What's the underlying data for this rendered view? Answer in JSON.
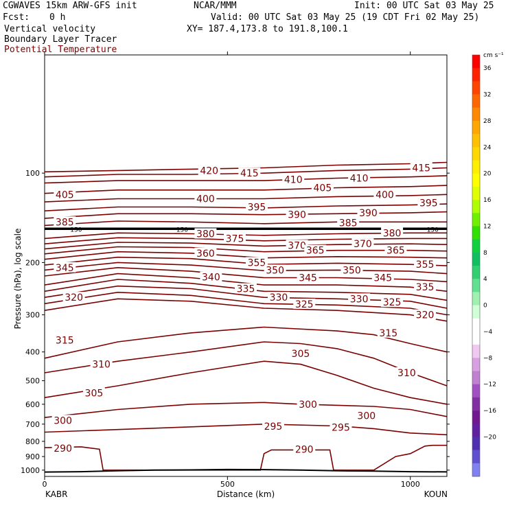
{
  "header": {
    "model": "CGWAVES 15km ARW-GFS init",
    "org": "NCAR/MMM",
    "init": "Init: 00 UTC Sat 03 May 25",
    "fcst_label": "Fcst:",
    "fcst_value": "0 h",
    "valid": "Valid: 00 UTC Sat 03 May 25 (19 CDT Fri 02 May 25)",
    "field1": "Vertical velocity",
    "xy": "XY= 187.4,173.8 to 191.8,100.1",
    "field2": "Boundary Layer Tracer",
    "field3": "Potential Temperature"
  },
  "colors": {
    "contour": "#7a0000",
    "field3_text": "#800000"
  },
  "chart_data": {
    "type": "line",
    "title": "",
    "xlabel": "Distance (km)",
    "ylabel": "Pressure (hPa), log scale",
    "xlim": [
      0,
      1100
    ],
    "ylim": [
      1050,
      40
    ],
    "y_scale": "log",
    "x_ticks": [
      0,
      500,
      1000
    ],
    "y_ticks": [
      100,
      200,
      300,
      400,
      500,
      600,
      700,
      800,
      900,
      1000
    ],
    "left_station": "KABR",
    "right_station": "KOUN",
    "tropopause_marker": "150",
    "contours": [
      {
        "theta": 290,
        "x": [
          0,
          100,
          150,
          160,
          170,
          180,
          580,
          590,
          600,
          620,
          780,
          790,
          800,
          820,
          900,
          960,
          1000,
          1040,
          1060,
          1100
        ],
        "p": [
          840,
          835,
          850,
          1000,
          1000,
          1000,
          1000,
          1000,
          880,
          855,
          855,
          1000,
          1000,
          1000,
          1000,
          900,
          880,
          830,
          825,
          825
        ]
      },
      {
        "theta": 295,
        "x": [
          0,
          200,
          400,
          600,
          800,
          900,
          1000,
          1100
        ],
        "p": [
          745,
          730,
          715,
          700,
          710,
          725,
          750,
          760
        ]
      },
      {
        "theta": 300,
        "x": [
          0,
          200,
          400,
          600,
          700,
          900,
          1000,
          1100
        ],
        "p": [
          665,
          625,
          600,
          592,
          600,
          610,
          625,
          660
        ]
      },
      {
        "theta": 305,
        "x": [
          0,
          200,
          400,
          600,
          700,
          800,
          900,
          1000,
          1100
        ],
        "p": [
          570,
          520,
          470,
          430,
          440,
          480,
          530,
          570,
          600
        ]
      },
      {
        "theta": 310,
        "x": [
          0,
          200,
          400,
          600,
          700,
          800,
          900,
          1000,
          1100
        ],
        "p": [
          470,
          430,
          400,
          370,
          375,
          390,
          420,
          470,
          520
        ]
      },
      {
        "theta": 315,
        "x": [
          0,
          200,
          400,
          600,
          800,
          900,
          1000,
          1100
        ],
        "p": [
          420,
          370,
          345,
          330,
          340,
          350,
          375,
          400
        ]
      },
      {
        "theta": 320,
        "x": [
          0,
          200,
          400,
          600,
          800,
          1000,
          1100
        ],
        "p": [
          290,
          265,
          270,
          285,
          290,
          300,
          315
        ]
      },
      {
        "theta": 325,
        "x": [
          0,
          200,
          400,
          600,
          800,
          1000,
          1100
        ],
        "p": [
          275,
          252,
          258,
          275,
          278,
          285,
          300
        ]
      },
      {
        "theta": 330,
        "x": [
          0,
          200,
          400,
          600,
          800,
          1000,
          1100
        ],
        "p": [
          262,
          240,
          245,
          262,
          265,
          270,
          285
        ]
      },
      {
        "theta": 335,
        "x": [
          0,
          200,
          400,
          600,
          800,
          1000,
          1100
        ],
        "p": [
          250,
          228,
          235,
          250,
          252,
          256,
          268
        ]
      },
      {
        "theta": 340,
        "x": [
          0,
          200,
          400,
          600,
          800,
          1000,
          1100
        ],
        "p": [
          238,
          218,
          225,
          238,
          238,
          242,
          250
        ]
      },
      {
        "theta": 345,
        "x": [
          0,
          200,
          400,
          600,
          800,
          1000,
          1100
        ],
        "p": [
          222,
          208,
          214,
          225,
          225,
          228,
          232
        ]
      },
      {
        "theta": 350,
        "x": [
          0,
          200,
          400,
          600,
          800,
          1000,
          1100
        ],
        "p": [
          212,
          200,
          204,
          213,
          212,
          214,
          218
        ]
      },
      {
        "theta": 355,
        "x": [
          0,
          200,
          400,
          600,
          800,
          1000,
          1100
        ],
        "p": [
          204,
          192,
          194,
          203,
          201,
          203,
          205
        ]
      },
      {
        "theta": 360,
        "x": [
          0,
          200,
          400,
          600,
          800,
          1000,
          1100
        ],
        "p": [
          195,
          184,
          186,
          193,
          191,
          192,
          193
        ]
      },
      {
        "theta": 365,
        "x": [
          0,
          200,
          400,
          600,
          800,
          1000,
          1100
        ],
        "p": [
          187,
          177,
          178,
          184,
          182,
          182,
          183
        ]
      },
      {
        "theta": 370,
        "x": [
          0,
          200,
          400,
          600,
          800,
          1000,
          1100
        ],
        "p": [
          180,
          171,
          172,
          176,
          174,
          173,
          174
        ]
      },
      {
        "theta": 375,
        "x": [
          0,
          200,
          400,
          600,
          800,
          1000,
          1100
        ],
        "p": [
          173,
          165,
          166,
          169,
          167,
          166,
          166
        ]
      },
      {
        "theta": 380,
        "x": [
          0,
          200,
          400,
          600,
          800,
          1000,
          1100
        ],
        "p": [
          166,
          159,
          160,
          162,
          160,
          159,
          159
        ]
      },
      {
        "theta": 385,
        "x": [
          0,
          200,
          400,
          600,
          800,
          1000,
          1100
        ],
        "p": [
          150,
          145,
          146,
          148,
          146,
          146,
          146
        ]
      },
      {
        "theta": 390,
        "x": [
          0,
          200,
          400,
          600,
          800,
          1000,
          1100
        ],
        "p": [
          142,
          137,
          137,
          138,
          137,
          136,
          135
        ]
      },
      {
        "theta": 395,
        "x": [
          0,
          200,
          400,
          600,
          800,
          1000,
          1100
        ],
        "p": [
          134,
          130,
          130,
          131,
          129,
          128,
          127
        ]
      },
      {
        "theta": 400,
        "x": [
          0,
          200,
          400,
          600,
          800,
          1000,
          1100
        ],
        "p": [
          125,
          122,
          122,
          122,
          120,
          119,
          118
        ]
      },
      {
        "theta": 405,
        "x": [
          0,
          200,
          400,
          600,
          800,
          1000,
          1100
        ],
        "p": [
          117,
          114,
          114,
          114,
          112,
          111,
          110
        ]
      },
      {
        "theta": 410,
        "x": [
          0,
          200,
          400,
          600,
          800,
          1000,
          1100
        ],
        "p": [
          108,
          106,
          106,
          106,
          104,
          103,
          102
        ]
      },
      {
        "theta": 415,
        "x": [
          0,
          200,
          400,
          600,
          800,
          1000,
          1100
        ],
        "p": [
          103,
          101,
          101,
          100,
          98,
          97,
          96
        ]
      },
      {
        "theta": 420,
        "x": [
          0,
          200,
          400,
          600,
          800,
          1000,
          1100
        ],
        "p": [
          99,
          98,
          97,
          96,
          94,
          93,
          92
        ]
      }
    ],
    "contour_labels": [
      {
        "text": "420",
        "x": 450,
        "p": 98
      },
      {
        "text": "415",
        "x": 560,
        "p": 100
      },
      {
        "text": "410",
        "x": 680,
        "p": 105
      },
      {
        "text": "405",
        "x": 760,
        "p": 112
      },
      {
        "text": "410",
        "x": 860,
        "p": 104
      },
      {
        "text": "415",
        "x": 1030,
        "p": 96
      },
      {
        "text": "405",
        "x": 55,
        "p": 118
      },
      {
        "text": "400",
        "x": 440,
        "p": 122
      },
      {
        "text": "395",
        "x": 580,
        "p": 130
      },
      {
        "text": "400",
        "x": 930,
        "p": 118
      },
      {
        "text": "395",
        "x": 1050,
        "p": 126
      },
      {
        "text": "390",
        "x": 690,
        "p": 138
      },
      {
        "text": "390",
        "x": 885,
        "p": 136
      },
      {
        "text": "385",
        "x": 55,
        "p": 146
      },
      {
        "text": "385",
        "x": 830,
        "p": 147
      },
      {
        "text": "380",
        "x": 440,
        "p": 160
      },
      {
        "text": "375",
        "x": 520,
        "p": 166
      },
      {
        "text": "380",
        "x": 950,
        "p": 159
      },
      {
        "text": "370",
        "x": 690,
        "p": 175
      },
      {
        "text": "370",
        "x": 870,
        "p": 173
      },
      {
        "text": "365",
        "x": 740,
        "p": 182
      },
      {
        "text": "365",
        "x": 960,
        "p": 182
      },
      {
        "text": "360",
        "x": 440,
        "p": 186
      },
      {
        "text": "355",
        "x": 580,
        "p": 200
      },
      {
        "text": "355",
        "x": 1040,
        "p": 203
      },
      {
        "text": "345",
        "x": 55,
        "p": 208
      },
      {
        "text": "350",
        "x": 630,
        "p": 212
      },
      {
        "text": "350",
        "x": 840,
        "p": 212
      },
      {
        "text": "345",
        "x": 720,
        "p": 225
      },
      {
        "text": "345",
        "x": 925,
        "p": 225
      },
      {
        "text": "340",
        "x": 455,
        "p": 224
      },
      {
        "text": "335",
        "x": 550,
        "p": 245
      },
      {
        "text": "335",
        "x": 1040,
        "p": 242
      },
      {
        "text": "330",
        "x": 640,
        "p": 262
      },
      {
        "text": "330",
        "x": 860,
        "p": 265
      },
      {
        "text": "325",
        "x": 710,
        "p": 276
      },
      {
        "text": "325",
        "x": 950,
        "p": 272
      },
      {
        "text": "320",
        "x": 80,
        "p": 262
      },
      {
        "text": "320",
        "x": 1040,
        "p": 300
      },
      {
        "text": "315",
        "x": 55,
        "p": 365
      },
      {
        "text": "315",
        "x": 940,
        "p": 345
      },
      {
        "text": "310",
        "x": 155,
        "p": 440
      },
      {
        "text": "310",
        "x": 990,
        "p": 470
      },
      {
        "text": "305",
        "x": 135,
        "p": 550
      },
      {
        "text": "305",
        "x": 700,
        "p": 405
      },
      {
        "text": "300",
        "x": 50,
        "p": 680
      },
      {
        "text": "300",
        "x": 720,
        "p": 600
      },
      {
        "text": "300",
        "x": 880,
        "p": 655
      },
      {
        "text": "295",
        "x": 625,
        "p": 712
      },
      {
        "text": "295",
        "x": 810,
        "p": 718
      },
      {
        "text": "290",
        "x": 50,
        "p": 845
      },
      {
        "text": "290",
        "x": 710,
        "p": 850
      }
    ],
    "tropopause": {
      "x": [
        0,
        200,
        400,
        600,
        800,
        1000,
        1100
      ],
      "p": [
        154,
        154,
        154,
        154,
        154,
        154,
        154
      ]
    },
    "terrain": {
      "x": [
        0,
        100,
        200,
        300,
        400,
        500,
        600,
        700,
        800,
        900,
        1000,
        1100
      ],
      "p": [
        1015,
        1012,
        1005,
        1000,
        998,
        995,
        996,
        1000,
        1005,
        1008,
        1012,
        1014
      ]
    },
    "colorbar": {
      "unit": "cm s⁻¹",
      "labels": [
        "36",
        "32",
        "28",
        "24",
        "20",
        "16",
        "12",
        "8",
        "4",
        "0",
        "−4",
        "−8",
        "−12",
        "−16",
        "−20"
      ],
      "colors": [
        "#ff0000",
        "#ff2200",
        "#ff4400",
        "#ff6600",
        "#ff8800",
        "#ffa600",
        "#ffc000",
        "#ffd800",
        "#ffee00",
        "#ffff00",
        "#e0ff00",
        "#b0ff00",
        "#70f000",
        "#30e000",
        "#10d040",
        "#10c060",
        "#30d070",
        "#60e090",
        "#a0f0b0",
        "#d0ffd8",
        "#ffffff",
        "#ffffff",
        "#f0c8f0",
        "#d8a0e0",
        "#c080d0",
        "#a050c0",
        "#8030a0",
        "#701890",
        "#6020a0",
        "#5030b0",
        "#6050d0",
        "#8080f0"
      ]
    }
  }
}
